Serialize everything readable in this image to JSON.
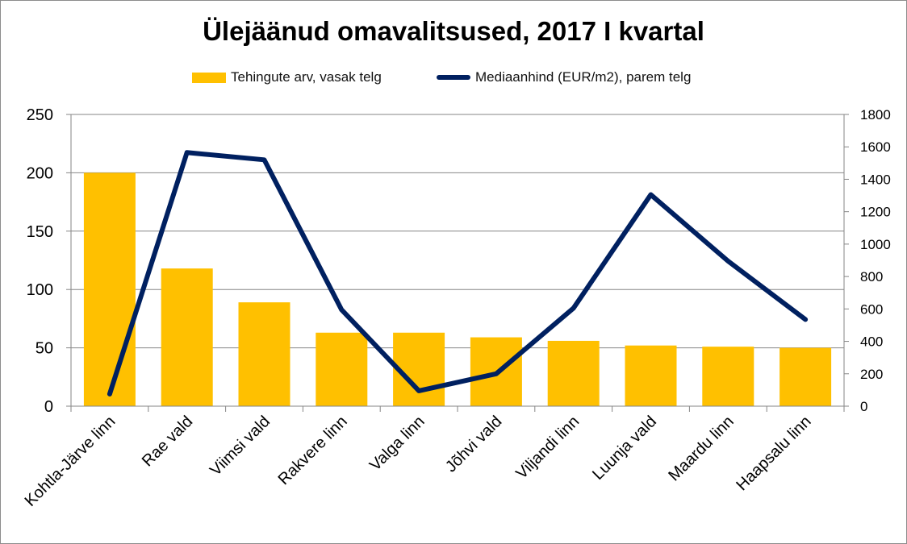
{
  "colors": {
    "bars": "#FFC000",
    "line": "#002060",
    "grid": "#868686",
    "axis": "#868686",
    "text": "#000000"
  },
  "chart_data": {
    "type": "bar",
    "title": "Ülejäänud omavalitsused, 2017 I kvartal",
    "categories": [
      "Kohtla-Järve linn",
      "Rae vald",
      "Viimsi vald",
      "Rakvere linn",
      "Valga linn",
      "Jõhvi vald",
      "Viljandi linn",
      "Luunja vald",
      "Maardu linn",
      "Haapsalu linn"
    ],
    "series": [
      {
        "name": "Tehingute arv, vasak telg",
        "type": "bar",
        "axis": "left",
        "values": [
          200,
          118,
          89,
          63,
          63,
          59,
          56,
          52,
          51,
          50
        ]
      },
      {
        "name": "Mediaanhind (EUR/m2), parem telg",
        "type": "line",
        "axis": "right",
        "values": [
          75,
          1565,
          1520,
          595,
          95,
          200,
          605,
          1305,
          895,
          535
        ]
      }
    ],
    "y_left": {
      "min": 0,
      "max": 250,
      "ticks": [
        0,
        50,
        100,
        150,
        200,
        250
      ]
    },
    "y_right": {
      "min": 0,
      "max": 1800,
      "ticks": [
        0,
        200,
        400,
        600,
        800,
        1000,
        1200,
        1400,
        1600,
        1800
      ]
    },
    "grid": true,
    "legend_position": "top"
  }
}
